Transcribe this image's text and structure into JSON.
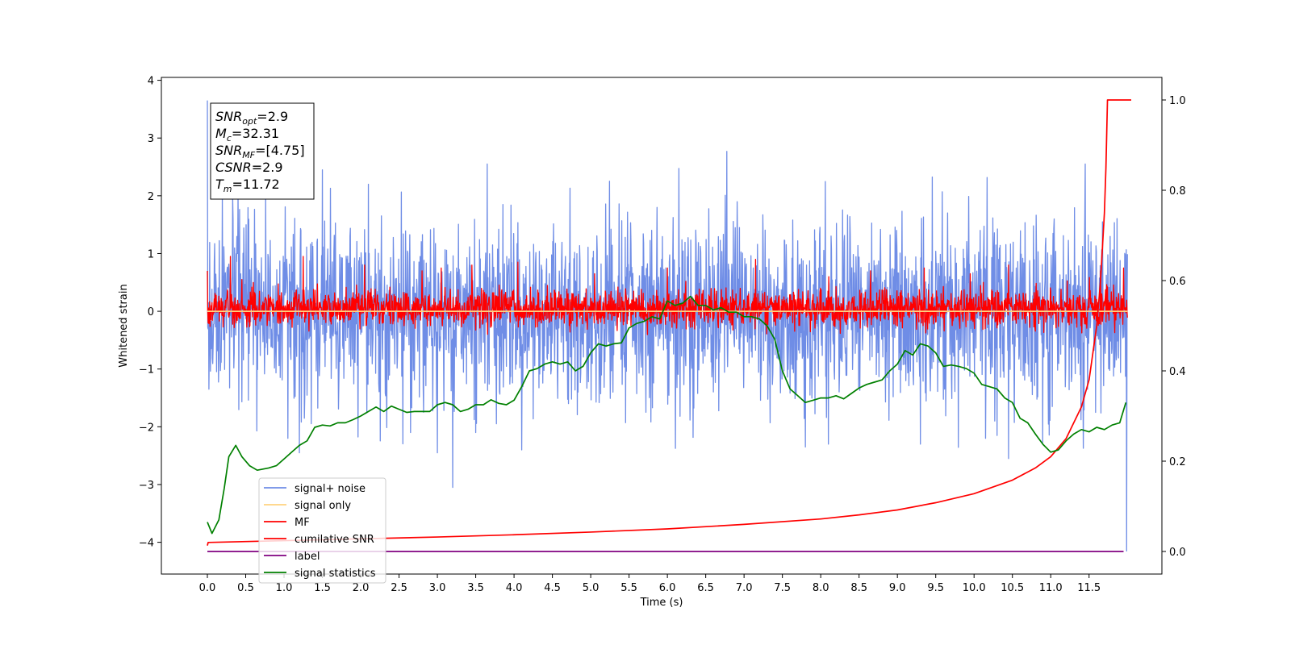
{
  "chart_data": {
    "type": "line",
    "title": "",
    "xlabel": "Time (s)",
    "ylabel": "Whitened strain",
    "xlim": [
      -0.6,
      12.45
    ],
    "ylim": [
      -4.55,
      4.05
    ],
    "y2lim": [
      -0.05,
      1.05
    ],
    "x_ticks": [
      0.0,
      0.5,
      1.0,
      1.5,
      2.0,
      2.5,
      3.0,
      3.5,
      4.0,
      4.5,
      5.0,
      5.5,
      6.0,
      6.5,
      7.0,
      7.5,
      8.0,
      8.5,
      9.0,
      9.5,
      10.0,
      10.5,
      11.0,
      11.5
    ],
    "x_tick_labels": [
      "0.0",
      "0.5",
      "1.0",
      "1.5",
      "2.0",
      "2.5",
      "3.0",
      "3.5",
      "4.0",
      "4.5",
      "5.0",
      "5.5",
      "6.0",
      "6.5",
      "7.0",
      "7.5",
      "8.0",
      "8.5",
      "9.0",
      "9.5",
      "10.0",
      "10.5",
      "11.0",
      "11.5"
    ],
    "y_ticks": [
      4,
      3,
      2,
      1,
      0,
      -1,
      -2,
      -3,
      -4
    ],
    "y_tick_labels": [
      "4",
      "3",
      "2",
      "1",
      "0",
      "−1",
      "−2",
      "−3",
      "−4"
    ],
    "y2_ticks": [
      1.0,
      0.8,
      0.6,
      0.4,
      0.2,
      0.0
    ],
    "y2_tick_labels": [
      "1.0",
      "0.8",
      "0.6",
      "0.4",
      "0.2",
      "0.0"
    ],
    "grid": false,
    "legend_placement": "lower-left",
    "series": [
      {
        "name": "signal+ noise",
        "color": "#6f8de6",
        "axis": "left",
        "kind": "noise",
        "x_range": [
          0.0,
          12.0
        ],
        "mean": 0.0,
        "std": 0.75,
        "spikes": [
          [
            0.0,
            3.65
          ],
          [
            0.05,
            -0.65
          ],
          [
            0.4,
            2.0
          ],
          [
            1.05,
            -2.2
          ],
          [
            1.2,
            -2.45
          ],
          [
            1.5,
            2.45
          ],
          [
            2.1,
            2.2
          ],
          [
            2.65,
            -2.1
          ],
          [
            3.0,
            -2.45
          ],
          [
            3.2,
            -3.05
          ],
          [
            3.5,
            -2.1
          ],
          [
            3.65,
            2.55
          ],
          [
            4.1,
            -2.4
          ],
          [
            7.8,
            -2.35
          ],
          [
            8.1,
            -2.3
          ],
          [
            9.3,
            -2.3
          ],
          [
            10.15,
            -2.2
          ],
          [
            10.3,
            -2.15
          ],
          [
            10.45,
            -2.55
          ],
          [
            11.45,
            2.55
          ],
          [
            11.99,
            -4.15
          ]
        ]
      },
      {
        "name": "signal only",
        "color": "#ffd27f",
        "axis": "left",
        "kind": "flat",
        "x": [
          0.0,
          12.0
        ],
        "y": [
          0.0,
          0.0
        ]
      },
      {
        "name": "MF",
        "color": "#ff0000",
        "axis": "left",
        "kind": "noise",
        "x_range": [
          0.0,
          12.0
        ],
        "mean": 0.05,
        "std": 0.16,
        "spikes": [
          [
            0.0,
            0.7
          ],
          [
            0.3,
            0.95
          ],
          [
            0.45,
            0.55
          ],
          [
            1.25,
            0.95
          ],
          [
            2.05,
            0.8
          ],
          [
            2.8,
            0.7
          ],
          [
            3.05,
            0.75
          ],
          [
            3.45,
            0.8
          ],
          [
            4.05,
            0.85
          ],
          [
            5.05,
            0.65
          ],
          [
            6.0,
            0.75
          ],
          [
            7.15,
            0.9
          ],
          [
            8.65,
            0.7
          ],
          [
            9.35,
            0.75
          ],
          [
            9.95,
            0.65
          ],
          [
            10.45,
            0.8
          ],
          [
            11.65,
            0.7
          ],
          [
            11.95,
            0.75
          ]
        ]
      },
      {
        "name": "cumilative SNR",
        "color": "#ff0000",
        "axis": "right",
        "x": [
          0.0,
          0.01,
          1.0,
          2.0,
          3.0,
          4.0,
          5.0,
          6.0,
          7.0,
          8.0,
          8.5,
          9.0,
          9.5,
          10.0,
          10.5,
          10.8,
          11.0,
          11.2,
          11.4,
          11.5,
          11.6,
          11.65,
          11.7,
          11.72,
          11.74,
          12.05
        ],
        "y": [
          0.013,
          0.02,
          0.024,
          0.028,
          0.032,
          0.037,
          0.043,
          0.05,
          0.06,
          0.072,
          0.081,
          0.092,
          0.108,
          0.128,
          0.158,
          0.185,
          0.21,
          0.25,
          0.32,
          0.38,
          0.5,
          0.6,
          0.75,
          0.85,
          1.0,
          1.0
        ]
      },
      {
        "name": "label",
        "color": "#800080",
        "axis": "right",
        "x": [
          0.0,
          11.95
        ],
        "y": [
          0.0,
          0.0
        ]
      },
      {
        "name": "signal statistics",
        "color": "#008000",
        "axis": "right",
        "x": [
          0.0,
          0.06,
          0.15,
          0.22,
          0.28,
          0.37,
          0.45,
          0.55,
          0.65,
          0.8,
          0.9,
          1.0,
          1.1,
          1.2,
          1.3,
          1.4,
          1.5,
          1.6,
          1.7,
          1.8,
          1.9,
          2.0,
          2.1,
          2.2,
          2.3,
          2.4,
          2.5,
          2.6,
          2.7,
          2.8,
          2.9,
          3.0,
          3.1,
          3.2,
          3.3,
          3.4,
          3.5,
          3.6,
          3.7,
          3.8,
          3.9,
          4.0,
          4.1,
          4.2,
          4.3,
          4.4,
          4.5,
          4.6,
          4.7,
          4.8,
          4.9,
          5.0,
          5.1,
          5.2,
          5.3,
          5.4,
          5.5,
          5.6,
          5.7,
          5.8,
          5.9,
          6.0,
          6.1,
          6.2,
          6.3,
          6.4,
          6.5,
          6.6,
          6.7,
          6.8,
          6.9,
          7.0,
          7.1,
          7.2,
          7.3,
          7.4,
          7.5,
          7.6,
          7.7,
          7.8,
          7.9,
          8.0,
          8.1,
          8.2,
          8.3,
          8.4,
          8.5,
          8.6,
          8.7,
          8.8,
          8.9,
          9.0,
          9.1,
          9.2,
          9.3,
          9.4,
          9.5,
          9.6,
          9.7,
          9.8,
          9.9,
          10.0,
          10.1,
          10.2,
          10.3,
          10.4,
          10.5,
          10.6,
          10.7,
          10.8,
          10.9,
          11.0,
          11.1,
          11.2,
          11.3,
          11.4,
          11.5,
          11.6,
          11.7,
          11.8,
          11.9,
          11.98
        ],
        "y": [
          0.065,
          0.04,
          0.07,
          0.14,
          0.21,
          0.235,
          0.21,
          0.19,
          0.18,
          0.185,
          0.19,
          0.205,
          0.22,
          0.235,
          0.245,
          0.275,
          0.28,
          0.278,
          0.285,
          0.285,
          0.292,
          0.3,
          0.31,
          0.32,
          0.31,
          0.322,
          0.315,
          0.308,
          0.31,
          0.31,
          0.31,
          0.325,
          0.33,
          0.325,
          0.31,
          0.315,
          0.325,
          0.325,
          0.336,
          0.328,
          0.325,
          0.335,
          0.365,
          0.4,
          0.405,
          0.415,
          0.42,
          0.415,
          0.42,
          0.4,
          0.41,
          0.44,
          0.46,
          0.455,
          0.46,
          0.462,
          0.495,
          0.505,
          0.51,
          0.52,
          0.515,
          0.555,
          0.545,
          0.55,
          0.565,
          0.545,
          0.545,
          0.535,
          0.54,
          0.53,
          0.53,
          0.52,
          0.52,
          0.515,
          0.5,
          0.47,
          0.4,
          0.36,
          0.345,
          0.33,
          0.335,
          0.34,
          0.34,
          0.345,
          0.338,
          0.35,
          0.362,
          0.37,
          0.375,
          0.38,
          0.4,
          0.415,
          0.445,
          0.435,
          0.46,
          0.455,
          0.44,
          0.41,
          0.413,
          0.41,
          0.405,
          0.395,
          0.37,
          0.365,
          0.36,
          0.34,
          0.33,
          0.295,
          0.285,
          0.26,
          0.237,
          0.22,
          0.225,
          0.245,
          0.26,
          0.27,
          0.265,
          0.275,
          0.27,
          0.28,
          0.285,
          0.33
        ]
      }
    ]
  },
  "info_box": {
    "lines": [
      {
        "sym": "SNR",
        "sub": "opt",
        "value": "=2.9"
      },
      {
        "sym": "M",
        "sub": "c",
        "value": "=32.31"
      },
      {
        "sym": "SNR",
        "sub": "MF",
        "value": "=[4.75]"
      },
      {
        "sym": "CSNR",
        "sub": "",
        "value": "=2.9"
      },
      {
        "sym": "T",
        "sub": "m",
        "value": "=11.72"
      }
    ]
  },
  "legend": {
    "items": [
      {
        "label": "signal+ noise",
        "color": "#6f8de6"
      },
      {
        "label": "signal only",
        "color": "#ffd27f"
      },
      {
        "label": "MF",
        "color": "#ff0000"
      },
      {
        "label": "cumilative SNR",
        "color": "#ff0000"
      },
      {
        "label": "label",
        "color": "#800080"
      },
      {
        "label": "signal statistics",
        "color": "#008000"
      }
    ]
  }
}
